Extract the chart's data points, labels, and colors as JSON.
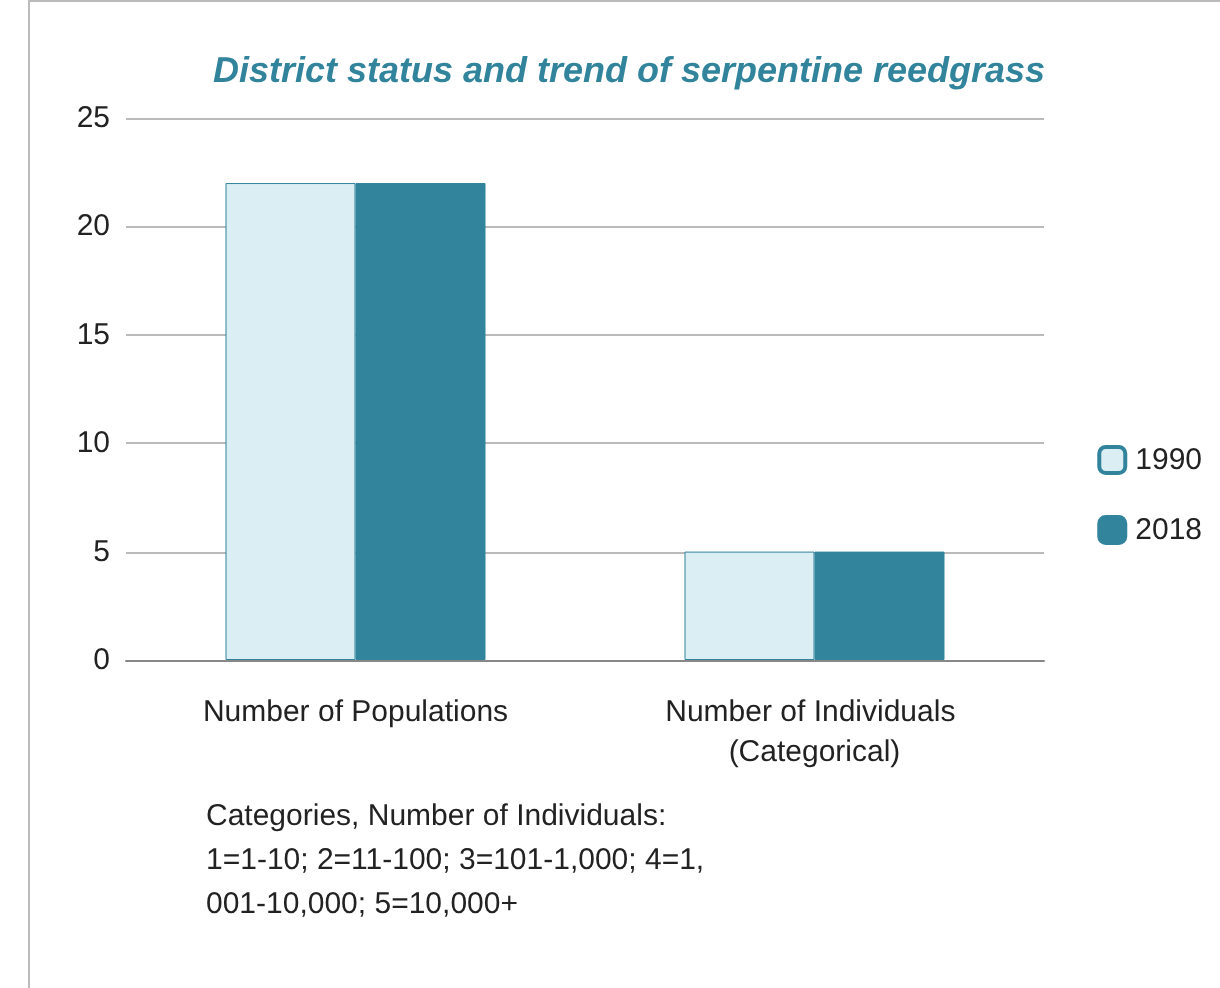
{
  "chart_data": {
    "type": "bar",
    "title": "District status and trend of serpentine reedgrass",
    "categories": [
      "Number of Populations",
      "Number of Individuals (Categorical)"
    ],
    "series": [
      {
        "name": "1990",
        "color": "#daeef3",
        "values": [
          22,
          5
        ]
      },
      {
        "name": "2018",
        "color": "#31849b",
        "values": [
          22,
          5
        ]
      }
    ],
    "ylim": [
      0,
      25
    ],
    "yticks": [
      0,
      5,
      10,
      15,
      20,
      25
    ],
    "grid": "y",
    "legend": "right",
    "annotations": [
      "Categories, Number of Individuals: 1=1-10; 2=11-100; 3=101-1,000; 4=1,001-10,000; 5=10,000+"
    ]
  }
}
